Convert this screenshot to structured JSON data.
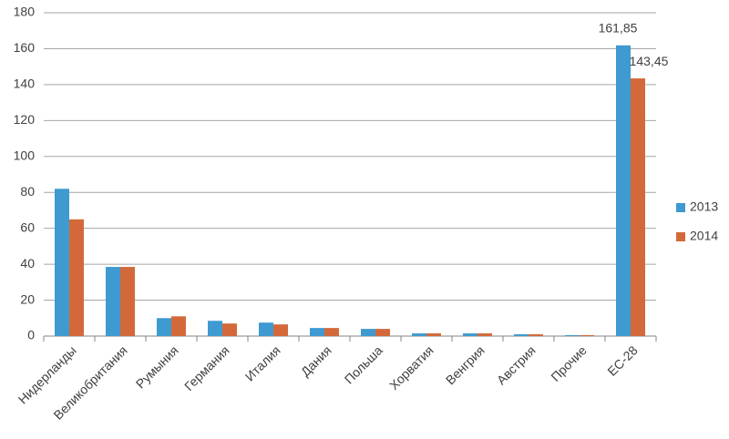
{
  "chart_data": {
    "type": "bar",
    "categories": [
      "Нидерланды",
      "Великобритания",
      "Румыния",
      "Германия",
      "Италия",
      "Дания",
      "Польша",
      "Хорватия",
      "Венгрия",
      "Австрия",
      "Прочие",
      "ЕС-28"
    ],
    "series": [
      {
        "name": "2013",
        "color": "#3e9ad0",
        "values": [
          82,
          38.5,
          10,
          8.5,
          7.5,
          4.5,
          4,
          1.5,
          1.5,
          1,
          0.5,
          161.85
        ],
        "value_labels": [
          null,
          null,
          null,
          null,
          null,
          null,
          null,
          null,
          null,
          null,
          null,
          "161,85"
        ]
      },
      {
        "name": "2014",
        "color": "#d3693a",
        "values": [
          65,
          38.5,
          11,
          7,
          6.5,
          4.5,
          4,
          1.5,
          1.5,
          1,
          0.5,
          143.45
        ],
        "value_labels": [
          null,
          null,
          null,
          null,
          null,
          null,
          null,
          null,
          null,
          null,
          null,
          "143,45"
        ]
      }
    ],
    "ylim": [
      0,
      180
    ],
    "yticks": [
      0,
      20,
      40,
      60,
      80,
      100,
      120,
      140,
      160,
      180
    ],
    "grid": true,
    "legend": "right"
  }
}
